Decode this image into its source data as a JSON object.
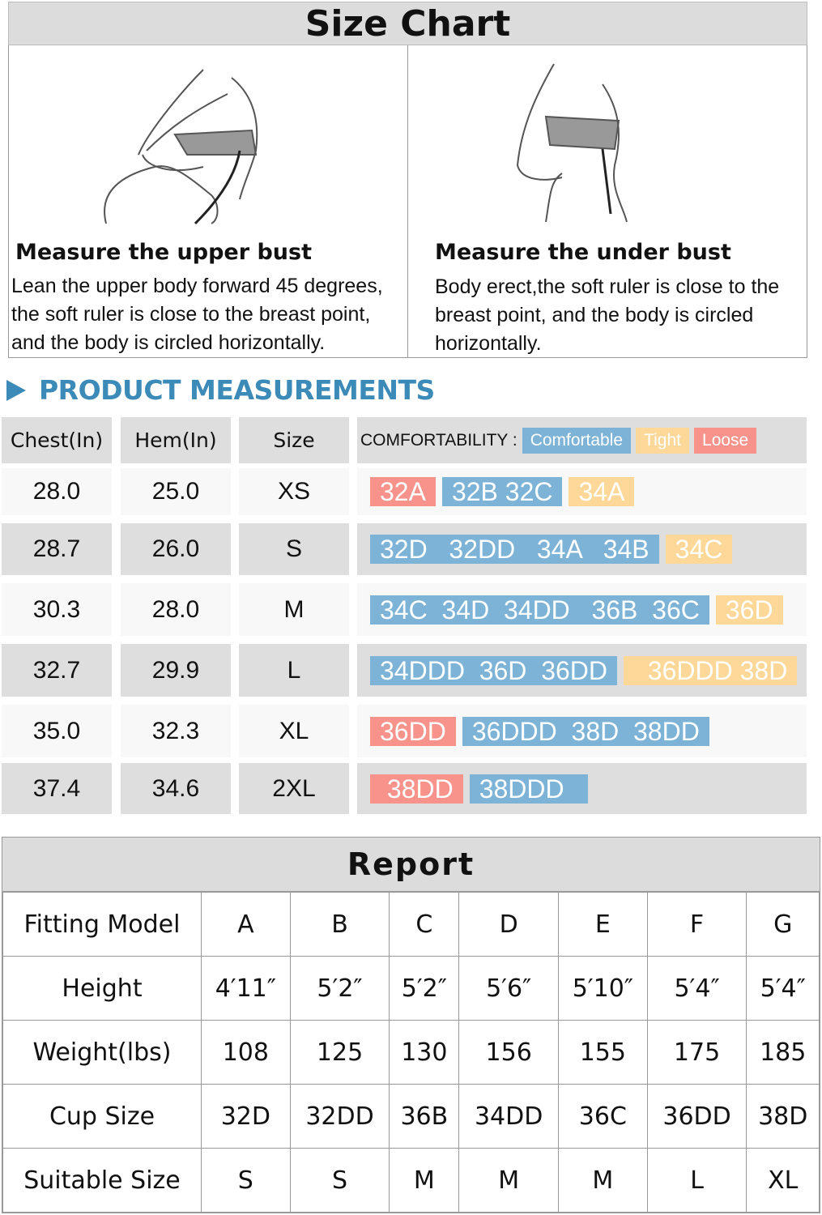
{
  "title": "Size Chart",
  "panels": [
    {
      "title": "Measure the upper bust",
      "desc": [
        "Lean the upper body forward 45 degrees,",
        "the soft ruler is close to the breast point,",
        "and the body is circled horizontally."
      ]
    },
    {
      "title": "Measure the under bust",
      "desc": [
        "Body erect,the soft ruler is close to the",
        "breast  point, and the body is circled",
        "horizontally."
      ]
    }
  ],
  "section_title": "PRODUCT MEASUREMENTS",
  "measure": {
    "headers": [
      "Chest(In)",
      "Hem(In)",
      "Size"
    ],
    "comfort_label": "COMFORTABILITY :",
    "legend": [
      {
        "text": "Comfortable",
        "type": "c"
      },
      {
        "text": "Tight",
        "type": "t"
      },
      {
        "text": "Loose",
        "type": "l"
      }
    ],
    "colors": {
      "comfortable": "#7db3d6",
      "tight": "#fdd898",
      "loose": "#f7938b"
    },
    "rows": [
      {
        "chest": "28.0",
        "hem": "25.0",
        "size": "XS",
        "chips": [
          {
            "text": "32A",
            "type": "l"
          },
          {
            "text": "32B 32C",
            "type": "c"
          },
          {
            "text": "34A",
            "type": "t"
          }
        ]
      },
      {
        "chest": "28.7",
        "hem": "26.0",
        "size": "S",
        "chips": [
          {
            "text": "32D   32DD   34A   34B",
            "type": "c"
          },
          {
            "text": "34C",
            "type": "t"
          }
        ]
      },
      {
        "chest": "30.3",
        "hem": "28.0",
        "size": "M",
        "chips": [
          {
            "text": "34C  34D  34DD   36B  36C",
            "type": "c"
          },
          {
            "text": "36D",
            "type": "t"
          }
        ]
      },
      {
        "chest": "32.7",
        "hem": "29.9",
        "size": "L",
        "chips": [
          {
            "text": "34DDD  36D  36DD",
            "type": "c"
          },
          {
            "text": "  36DDD 38D",
            "type": "t"
          }
        ]
      },
      {
        "chest": "35.0",
        "hem": "32.3",
        "size": "XL",
        "chips": [
          {
            "text": "36DD",
            "type": "l"
          },
          {
            "text": "36DDD  38D  38DD",
            "type": "c"
          }
        ]
      },
      {
        "chest": "37.4",
        "hem": "34.6",
        "size": "2XL",
        "chips": [
          {
            "text": " 38DD",
            "type": "l"
          },
          {
            "text": "38DDD  ",
            "type": "c"
          }
        ]
      }
    ]
  },
  "report": {
    "title": "Report",
    "rows": [
      [
        "Fitting Model",
        "A",
        "B",
        "C",
        "D",
        "E",
        "F",
        "G"
      ],
      [
        "Height",
        "4′11″",
        "5′2″",
        "5′2″",
        "5′6″",
        "5′10″",
        "5′4″",
        "5′4″"
      ],
      [
        "Weight(lbs)",
        "108",
        "125",
        "130",
        "156",
        "155",
        "175",
        "185"
      ],
      [
        "Cup Size",
        "32D",
        "32DD",
        "36B",
        "34DD",
        "36C",
        "36DD",
        "38D"
      ],
      [
        "Suitable Size",
        "S",
        "S",
        "M",
        "M",
        "M",
        "L",
        "XL"
      ]
    ]
  }
}
